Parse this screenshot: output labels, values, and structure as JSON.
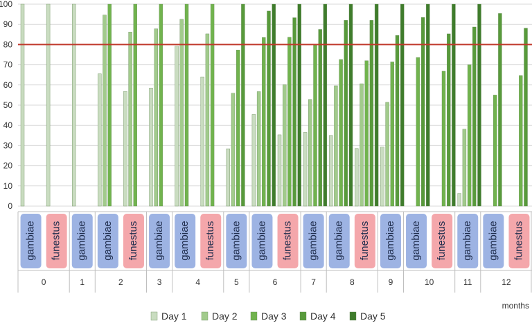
{
  "chart_data": {
    "type": "bar",
    "xlabel": "months",
    "ylim": [
      0,
      100
    ],
    "yticks": [
      0,
      10,
      20,
      30,
      40,
      50,
      60,
      70,
      80,
      90,
      100
    ],
    "threshold": {
      "value": 80,
      "color": "#c0392b"
    },
    "grid": "horizontal",
    "legend_position": "bottom",
    "series": [
      {
        "name": "Day 1",
        "color": "#c9dcc0"
      },
      {
        "name": "Day 2",
        "color": "#a2cb8c"
      },
      {
        "name": "Day 3",
        "color": "#71b34e"
      },
      {
        "name": "Day 4",
        "color": "#589a3b"
      },
      {
        "name": "Day 5",
        "color": "#3f7c2c"
      }
    ],
    "species_colors": {
      "gambiae": "#9db3e3",
      "funestus": "#f4a7ab"
    },
    "groups": [
      {
        "month": "0",
        "species": "gambiae",
        "values": [
          100,
          null,
          null,
          null,
          null
        ]
      },
      {
        "month": "0",
        "species": "funestus",
        "values": [
          100,
          null,
          null,
          null,
          null
        ]
      },
      {
        "month": "1",
        "species": "gambiae",
        "values": [
          100,
          null,
          null,
          null,
          null
        ]
      },
      {
        "month": "2",
        "species": "gambiae",
        "values": [
          65.5,
          94.6,
          100,
          null,
          null
        ]
      },
      {
        "month": "2",
        "species": "funestus",
        "values": [
          56.8,
          86.2,
          100,
          null,
          null
        ]
      },
      {
        "month": "3",
        "species": "gambiae",
        "values": [
          58.5,
          87.8,
          100,
          null,
          null
        ]
      },
      {
        "month": "4",
        "species": "gambiae",
        "values": [
          79.2,
          92.5,
          100,
          null,
          null
        ]
      },
      {
        "month": "4",
        "species": "funestus",
        "values": [
          64.0,
          85.3,
          100,
          null,
          null
        ]
      },
      {
        "month": "5",
        "species": "gambiae",
        "values": [
          28.4,
          55.9,
          77.3,
          100,
          null
        ]
      },
      {
        "month": "6",
        "species": "gambiae",
        "values": [
          45.4,
          56.7,
          83.5,
          96.6,
          100
        ]
      },
      {
        "month": "6",
        "species": "funestus",
        "values": [
          35.3,
          60.1,
          83.6,
          93.3,
          100
        ]
      },
      {
        "month": "7",
        "species": "gambiae",
        "values": [
          36.5,
          52.8,
          79.8,
          87.5,
          100
        ]
      },
      {
        "month": "8",
        "species": "gambiae",
        "values": [
          35.0,
          59.6,
          72.6,
          92.0,
          100
        ]
      },
      {
        "month": "8",
        "species": "funestus",
        "values": [
          28.5,
          60.6,
          72.0,
          92.0,
          100
        ]
      },
      {
        "month": "9",
        "species": "gambiae",
        "values": [
          29.3,
          51.4,
          71.4,
          84.5,
          100
        ]
      },
      {
        "month": "10",
        "species": "gambiae",
        "values": [
          null,
          null,
          73.6,
          93.4,
          100
        ]
      },
      {
        "month": "10",
        "species": "funestus",
        "values": [
          null,
          null,
          66.8,
          85.3,
          100
        ]
      },
      {
        "month": "11",
        "species": "gambiae",
        "values": [
          6.3,
          38.1,
          70.0,
          88.7,
          100
        ]
      },
      {
        "month": "12",
        "species": "gambiae",
        "values": [
          null,
          null,
          55.0,
          95.4,
          null
        ]
      },
      {
        "month": "12",
        "species": "funestus",
        "values": [
          null,
          null,
          64.6,
          88.1,
          null
        ]
      }
    ]
  }
}
